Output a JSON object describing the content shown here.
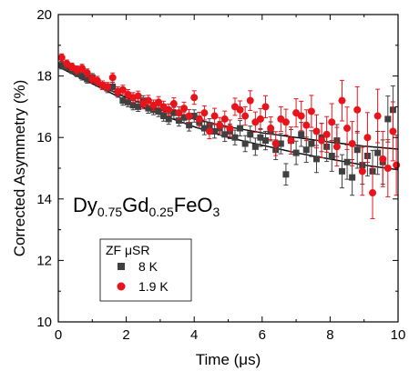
{
  "chart_data": {
    "type": "scatter",
    "xlabel": "Time (μs)",
    "ylabel": "Corrected Asymmetry (%)",
    "xlim": [
      0,
      10
    ],
    "ylim": [
      10,
      20
    ],
    "x_ticks": [
      "0",
      "2",
      "4",
      "6",
      "8",
      "10"
    ],
    "y_ticks": [
      "10",
      "12",
      "14",
      "16",
      "18",
      "20"
    ],
    "annotation": {
      "base1": "Dy",
      "sub1": "0.75",
      "base2": "Gd",
      "sub2": "0.25",
      "base3": "FeO",
      "sub3": "3"
    },
    "legend_title": "ZF μSR",
    "series": [
      {
        "name": "8 K",
        "color": "#404040",
        "marker": "square",
        "points": [
          {
            "x": 0.1,
            "y": 18.35,
            "e": 0.12
          },
          {
            "x": 0.25,
            "y": 18.3,
            "e": 0.12
          },
          {
            "x": 0.4,
            "y": 18.2,
            "e": 0.12
          },
          {
            "x": 0.55,
            "y": 18.1,
            "e": 0.12
          },
          {
            "x": 0.7,
            "y": 18.0,
            "e": 0.13
          },
          {
            "x": 0.85,
            "y": 17.9,
            "e": 0.13
          },
          {
            "x": 1.0,
            "y": 17.95,
            "e": 0.13
          },
          {
            "x": 1.15,
            "y": 17.8,
            "e": 0.13
          },
          {
            "x": 1.3,
            "y": 17.7,
            "e": 0.14
          },
          {
            "x": 1.45,
            "y": 17.6,
            "e": 0.14
          },
          {
            "x": 1.6,
            "y": 17.65,
            "e": 0.14
          },
          {
            "x": 1.75,
            "y": 17.45,
            "e": 0.14
          },
          {
            "x": 1.9,
            "y": 17.2,
            "e": 0.15
          },
          {
            "x": 2.05,
            "y": 17.15,
            "e": 0.15
          },
          {
            "x": 2.2,
            "y": 17.05,
            "e": 0.15
          },
          {
            "x": 2.35,
            "y": 17.0,
            "e": 0.15
          },
          {
            "x": 2.5,
            "y": 17.2,
            "e": 0.16
          },
          {
            "x": 2.65,
            "y": 16.95,
            "e": 0.16
          },
          {
            "x": 2.8,
            "y": 16.9,
            "e": 0.16
          },
          {
            "x": 2.95,
            "y": 16.85,
            "e": 0.17
          },
          {
            "x": 3.1,
            "y": 16.7,
            "e": 0.17
          },
          {
            "x": 3.25,
            "y": 16.6,
            "e": 0.17
          },
          {
            "x": 3.4,
            "y": 16.8,
            "e": 0.18
          },
          {
            "x": 3.55,
            "y": 16.55,
            "e": 0.18
          },
          {
            "x": 3.7,
            "y": 16.65,
            "e": 0.18
          },
          {
            "x": 3.85,
            "y": 16.4,
            "e": 0.19
          },
          {
            "x": 4.0,
            "y": 16.7,
            "e": 0.2
          },
          {
            "x": 4.15,
            "y": 16.5,
            "e": 0.2
          },
          {
            "x": 4.3,
            "y": 16.3,
            "e": 0.21
          },
          {
            "x": 4.45,
            "y": 16.4,
            "e": 0.21
          },
          {
            "x": 4.6,
            "y": 16.2,
            "e": 0.22
          },
          {
            "x": 4.75,
            "y": 16.3,
            "e": 0.22
          },
          {
            "x": 4.9,
            "y": 16.1,
            "e": 0.23
          },
          {
            "x": 5.05,
            "y": 16.2,
            "e": 0.24
          },
          {
            "x": 5.2,
            "y": 16.0,
            "e": 0.24
          },
          {
            "x": 5.35,
            "y": 16.3,
            "e": 0.25
          },
          {
            "x": 5.5,
            "y": 15.8,
            "e": 0.26
          },
          {
            "x": 5.65,
            "y": 16.1,
            "e": 0.27
          },
          {
            "x": 5.8,
            "y": 15.7,
            "e": 0.28
          },
          {
            "x": 5.95,
            "y": 16.0,
            "e": 0.29
          },
          {
            "x": 6.1,
            "y": 15.9,
            "e": 0.3
          },
          {
            "x": 6.25,
            "y": 16.2,
            "e": 0.31
          },
          {
            "x": 6.4,
            "y": 15.6,
            "e": 0.32
          },
          {
            "x": 6.55,
            "y": 15.8,
            "e": 0.33
          },
          {
            "x": 6.7,
            "y": 14.8,
            "e": 0.35
          },
          {
            "x": 6.85,
            "y": 15.9,
            "e": 0.36
          },
          {
            "x": 7.0,
            "y": 15.5,
            "e": 0.38
          },
          {
            "x": 7.15,
            "y": 16.1,
            "e": 0.39
          },
          {
            "x": 7.3,
            "y": 15.6,
            "e": 0.41
          },
          {
            "x": 7.45,
            "y": 15.8,
            "e": 0.42
          },
          {
            "x": 7.6,
            "y": 15.3,
            "e": 0.44
          },
          {
            "x": 7.75,
            "y": 16.0,
            "e": 0.46
          },
          {
            "x": 7.9,
            "y": 15.7,
            "e": 0.48
          },
          {
            "x": 8.05,
            "y": 15.4,
            "e": 0.5
          },
          {
            "x": 8.2,
            "y": 15.9,
            "e": 0.52
          },
          {
            "x": 8.35,
            "y": 14.9,
            "e": 0.54
          },
          {
            "x": 8.5,
            "y": 15.2,
            "e": 0.56
          },
          {
            "x": 8.65,
            "y": 14.7,
            "e": 0.58
          },
          {
            "x": 8.8,
            "y": 15.6,
            "e": 0.6
          },
          {
            "x": 8.95,
            "y": 15.1,
            "e": 0.62
          },
          {
            "x": 9.1,
            "y": 15.4,
            "e": 0.65
          },
          {
            "x": 9.25,
            "y": 14.9,
            "e": 0.68
          },
          {
            "x": 9.4,
            "y": 15.5,
            "e": 0.7
          },
          {
            "x": 9.55,
            "y": 15.2,
            "e": 0.72
          },
          {
            "x": 9.7,
            "y": 16.6,
            "e": 0.75
          },
          {
            "x": 9.85,
            "y": 16.9,
            "e": 0.78
          }
        ]
      },
      {
        "name": "1.9 K",
        "color": "#e8141c",
        "marker": "circle",
        "points": [
          {
            "x": 0.1,
            "y": 18.6,
            "e": 0.12
          },
          {
            "x": 0.25,
            "y": 18.4,
            "e": 0.12
          },
          {
            "x": 0.4,
            "y": 18.3,
            "e": 0.12
          },
          {
            "x": 0.55,
            "y": 18.2,
            "e": 0.13
          },
          {
            "x": 0.7,
            "y": 18.25,
            "e": 0.13
          },
          {
            "x": 0.85,
            "y": 18.1,
            "e": 0.13
          },
          {
            "x": 1.0,
            "y": 17.9,
            "e": 0.13
          },
          {
            "x": 1.15,
            "y": 17.85,
            "e": 0.14
          },
          {
            "x": 1.3,
            "y": 17.7,
            "e": 0.14
          },
          {
            "x": 1.45,
            "y": 17.65,
            "e": 0.14
          },
          {
            "x": 1.6,
            "y": 17.95,
            "e": 0.15
          },
          {
            "x": 1.75,
            "y": 17.5,
            "e": 0.15
          },
          {
            "x": 1.9,
            "y": 17.55,
            "e": 0.15
          },
          {
            "x": 2.05,
            "y": 17.4,
            "e": 0.16
          },
          {
            "x": 2.2,
            "y": 17.3,
            "e": 0.16
          },
          {
            "x": 2.35,
            "y": 17.35,
            "e": 0.16
          },
          {
            "x": 2.5,
            "y": 17.1,
            "e": 0.17
          },
          {
            "x": 2.65,
            "y": 17.2,
            "e": 0.17
          },
          {
            "x": 2.8,
            "y": 17.05,
            "e": 0.17
          },
          {
            "x": 2.95,
            "y": 17.15,
            "e": 0.18
          },
          {
            "x": 3.1,
            "y": 17.0,
            "e": 0.18
          },
          {
            "x": 3.25,
            "y": 16.9,
            "e": 0.19
          },
          {
            "x": 3.4,
            "y": 17.1,
            "e": 0.19
          },
          {
            "x": 3.55,
            "y": 16.8,
            "e": 0.2
          },
          {
            "x": 3.7,
            "y": 16.95,
            "e": 0.2
          },
          {
            "x": 3.85,
            "y": 16.7,
            "e": 0.21
          },
          {
            "x": 4.0,
            "y": 17.3,
            "e": 0.22
          },
          {
            "x": 4.15,
            "y": 16.6,
            "e": 0.22
          },
          {
            "x": 4.3,
            "y": 16.8,
            "e": 0.23
          },
          {
            "x": 4.45,
            "y": 16.2,
            "e": 0.24
          },
          {
            "x": 4.6,
            "y": 16.7,
            "e": 0.25
          },
          {
            "x": 4.75,
            "y": 16.4,
            "e": 0.25
          },
          {
            "x": 4.9,
            "y": 16.6,
            "e": 0.26
          },
          {
            "x": 5.05,
            "y": 16.3,
            "e": 0.27
          },
          {
            "x": 5.2,
            "y": 17.0,
            "e": 0.28
          },
          {
            "x": 5.35,
            "y": 16.9,
            "e": 0.29
          },
          {
            "x": 5.5,
            "y": 16.7,
            "e": 0.3
          },
          {
            "x": 5.65,
            "y": 17.2,
            "e": 0.32
          },
          {
            "x": 5.8,
            "y": 16.5,
            "e": 0.33
          },
          {
            "x": 5.95,
            "y": 16.6,
            "e": 0.34
          },
          {
            "x": 6.1,
            "y": 17.0,
            "e": 0.36
          },
          {
            "x": 6.25,
            "y": 16.3,
            "e": 0.37
          },
          {
            "x": 6.4,
            "y": 15.8,
            "e": 0.39
          },
          {
            "x": 6.55,
            "y": 16.6,
            "e": 0.4
          },
          {
            "x": 6.7,
            "y": 16.5,
            "e": 0.42
          },
          {
            "x": 6.85,
            "y": 15.9,
            "e": 0.44
          },
          {
            "x": 7.0,
            "y": 16.8,
            "e": 0.46
          },
          {
            "x": 7.15,
            "y": 16.7,
            "e": 0.48
          },
          {
            "x": 7.3,
            "y": 16.4,
            "e": 0.5
          },
          {
            "x": 7.45,
            "y": 16.85,
            "e": 0.52
          },
          {
            "x": 7.6,
            "y": 16.2,
            "e": 0.54
          },
          {
            "x": 7.75,
            "y": 15.9,
            "e": 0.56
          },
          {
            "x": 7.9,
            "y": 16.1,
            "e": 0.58
          },
          {
            "x": 8.05,
            "y": 16.5,
            "e": 0.6
          },
          {
            "x": 8.2,
            "y": 15.7,
            "e": 0.63
          },
          {
            "x": 8.35,
            "y": 17.2,
            "e": 0.66
          },
          {
            "x": 8.5,
            "y": 16.3,
            "e": 0.69
          },
          {
            "x": 8.65,
            "y": 15.8,
            "e": 0.72
          },
          {
            "x": 8.8,
            "y": 16.9,
            "e": 0.75
          },
          {
            "x": 8.95,
            "y": 14.9,
            "e": 0.78
          },
          {
            "x": 9.1,
            "y": 16.0,
            "e": 0.81
          },
          {
            "x": 9.25,
            "y": 14.2,
            "e": 0.84
          },
          {
            "x": 9.4,
            "y": 16.7,
            "e": 0.87
          },
          {
            "x": 9.55,
            "y": 15.3,
            "e": 0.9
          },
          {
            "x": 9.7,
            "y": 15.0,
            "e": 0.93
          },
          {
            "x": 9.85,
            "y": 16.2,
            "e": 0.96
          },
          {
            "x": 9.95,
            "y": 15.1,
            "e": 0.98
          }
        ]
      }
    ],
    "fits": [
      {
        "color": "#000000",
        "points": [
          [
            0,
            18.4
          ],
          [
            1,
            17.8
          ],
          [
            2,
            17.3
          ],
          [
            3,
            16.9
          ],
          [
            4,
            16.6
          ],
          [
            5,
            16.35
          ],
          [
            6,
            16.15
          ],
          [
            7,
            16.0
          ],
          [
            8,
            15.85
          ],
          [
            9,
            15.72
          ],
          [
            10,
            15.62
          ]
        ]
      },
      {
        "color": "#000000",
        "points": [
          [
            0,
            18.3
          ],
          [
            1,
            17.75
          ],
          [
            2,
            17.2
          ],
          [
            3,
            16.75
          ],
          [
            4,
            16.35
          ],
          [
            5,
            16.0
          ],
          [
            6,
            15.75
          ],
          [
            7,
            15.5
          ],
          [
            8,
            15.3
          ],
          [
            9,
            15.1
          ],
          [
            10,
            14.95
          ]
        ]
      }
    ]
  }
}
